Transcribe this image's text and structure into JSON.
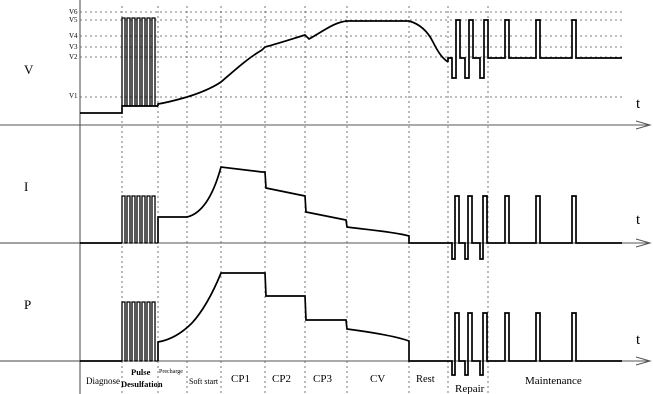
{
  "axes": {
    "voltage_label": "V",
    "current_label": "I",
    "power_label": "P",
    "time_label": "t"
  },
  "voltage_levels": [
    "V6",
    "V5",
    "V4",
    "V3",
    "V2",
    "V1"
  ],
  "stages": [
    {
      "key": "diagnose",
      "label": "Diagnose"
    },
    {
      "key": "pulse",
      "label": "Pulse",
      "label2": "Desulfation"
    },
    {
      "key": "precharge",
      "label": "Precharge"
    },
    {
      "key": "softstart",
      "label": "Soft start"
    },
    {
      "key": "cp1",
      "label": "CP1"
    },
    {
      "key": "cp2",
      "label": "CP2"
    },
    {
      "key": "cp3",
      "label": "CP3"
    },
    {
      "key": "cv",
      "label": "CV"
    },
    {
      "key": "rest",
      "label": "Rest"
    },
    {
      "key": "repair",
      "label": "Repair"
    },
    {
      "key": "maintenance",
      "label": "Maintenance"
    }
  ]
}
